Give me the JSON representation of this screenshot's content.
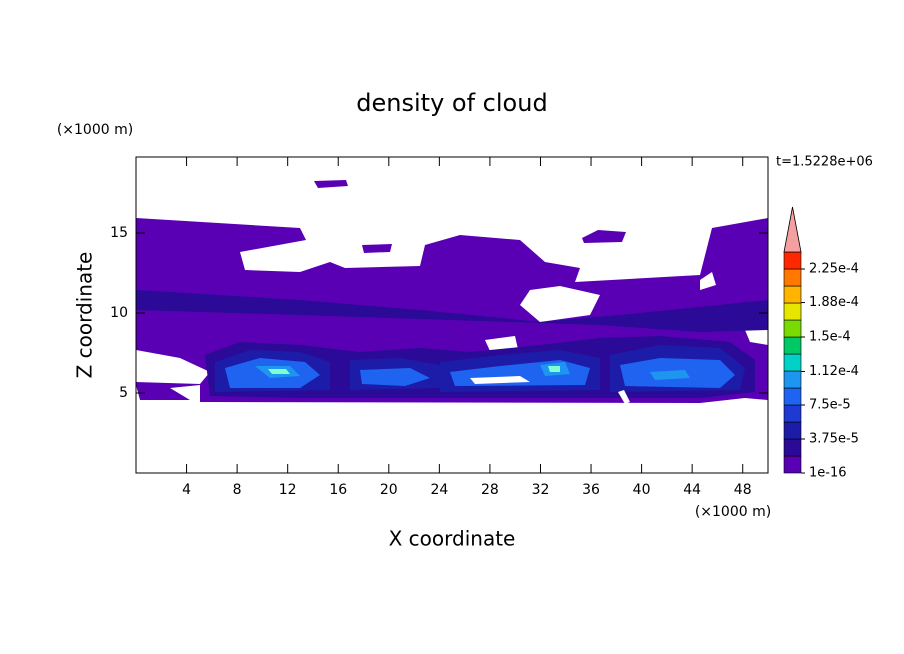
{
  "chart_data": {
    "type": "contour",
    "title": "density of cloud",
    "x_label": "X coordinate",
    "y_label": "Z coordinate",
    "x_unit": "(×1000 m)",
    "y_unit": "(×1000 m)",
    "time_label": "t=1.5228e+06",
    "xlim": [
      0,
      50
    ],
    "xticks": [
      4,
      8,
      12,
      16,
      20,
      24,
      28,
      32,
      36,
      40,
      44,
      48
    ],
    "ylim": [
      0,
      19.75
    ],
    "yticks": [
      5,
      10,
      15
    ],
    "colorbar": {
      "levels": [
        0,
        1.875e-05,
        3.75e-05,
        5.625e-05,
        7.5e-05,
        9.375e-05,
        0.0001125,
        0.00013125,
        0.00015,
        0.00016875,
        0.0001875,
        0.00020625,
        0.000225,
        0.00024375
      ],
      "colors": [
        "#5a00b4",
        "#2a0a96",
        "#1c1ca8",
        "#1e3ad2",
        "#1e64f0",
        "#1e96f0",
        "#00d2c8",
        "#00c864",
        "#78dc00",
        "#e6e600",
        "#ffb400",
        "#ff7800",
        "#ff2800"
      ],
      "extend_color": "#f4a0a0",
      "ticks": [
        {
          "value": 1e-16,
          "label": "1e-16"
        },
        {
          "value": 3.75e-05,
          "label": "3.75e-5"
        },
        {
          "value": 7.5e-05,
          "label": "7.5e-5"
        },
        {
          "value": 0.000112,
          "label": "1.12e-4"
        },
        {
          "value": 0.00015,
          "label": "1.5e-4"
        },
        {
          "value": 0.000188,
          "label": "1.88e-4"
        },
        {
          "value": 0.000225,
          "label": "2.25e-4"
        }
      ]
    }
  }
}
